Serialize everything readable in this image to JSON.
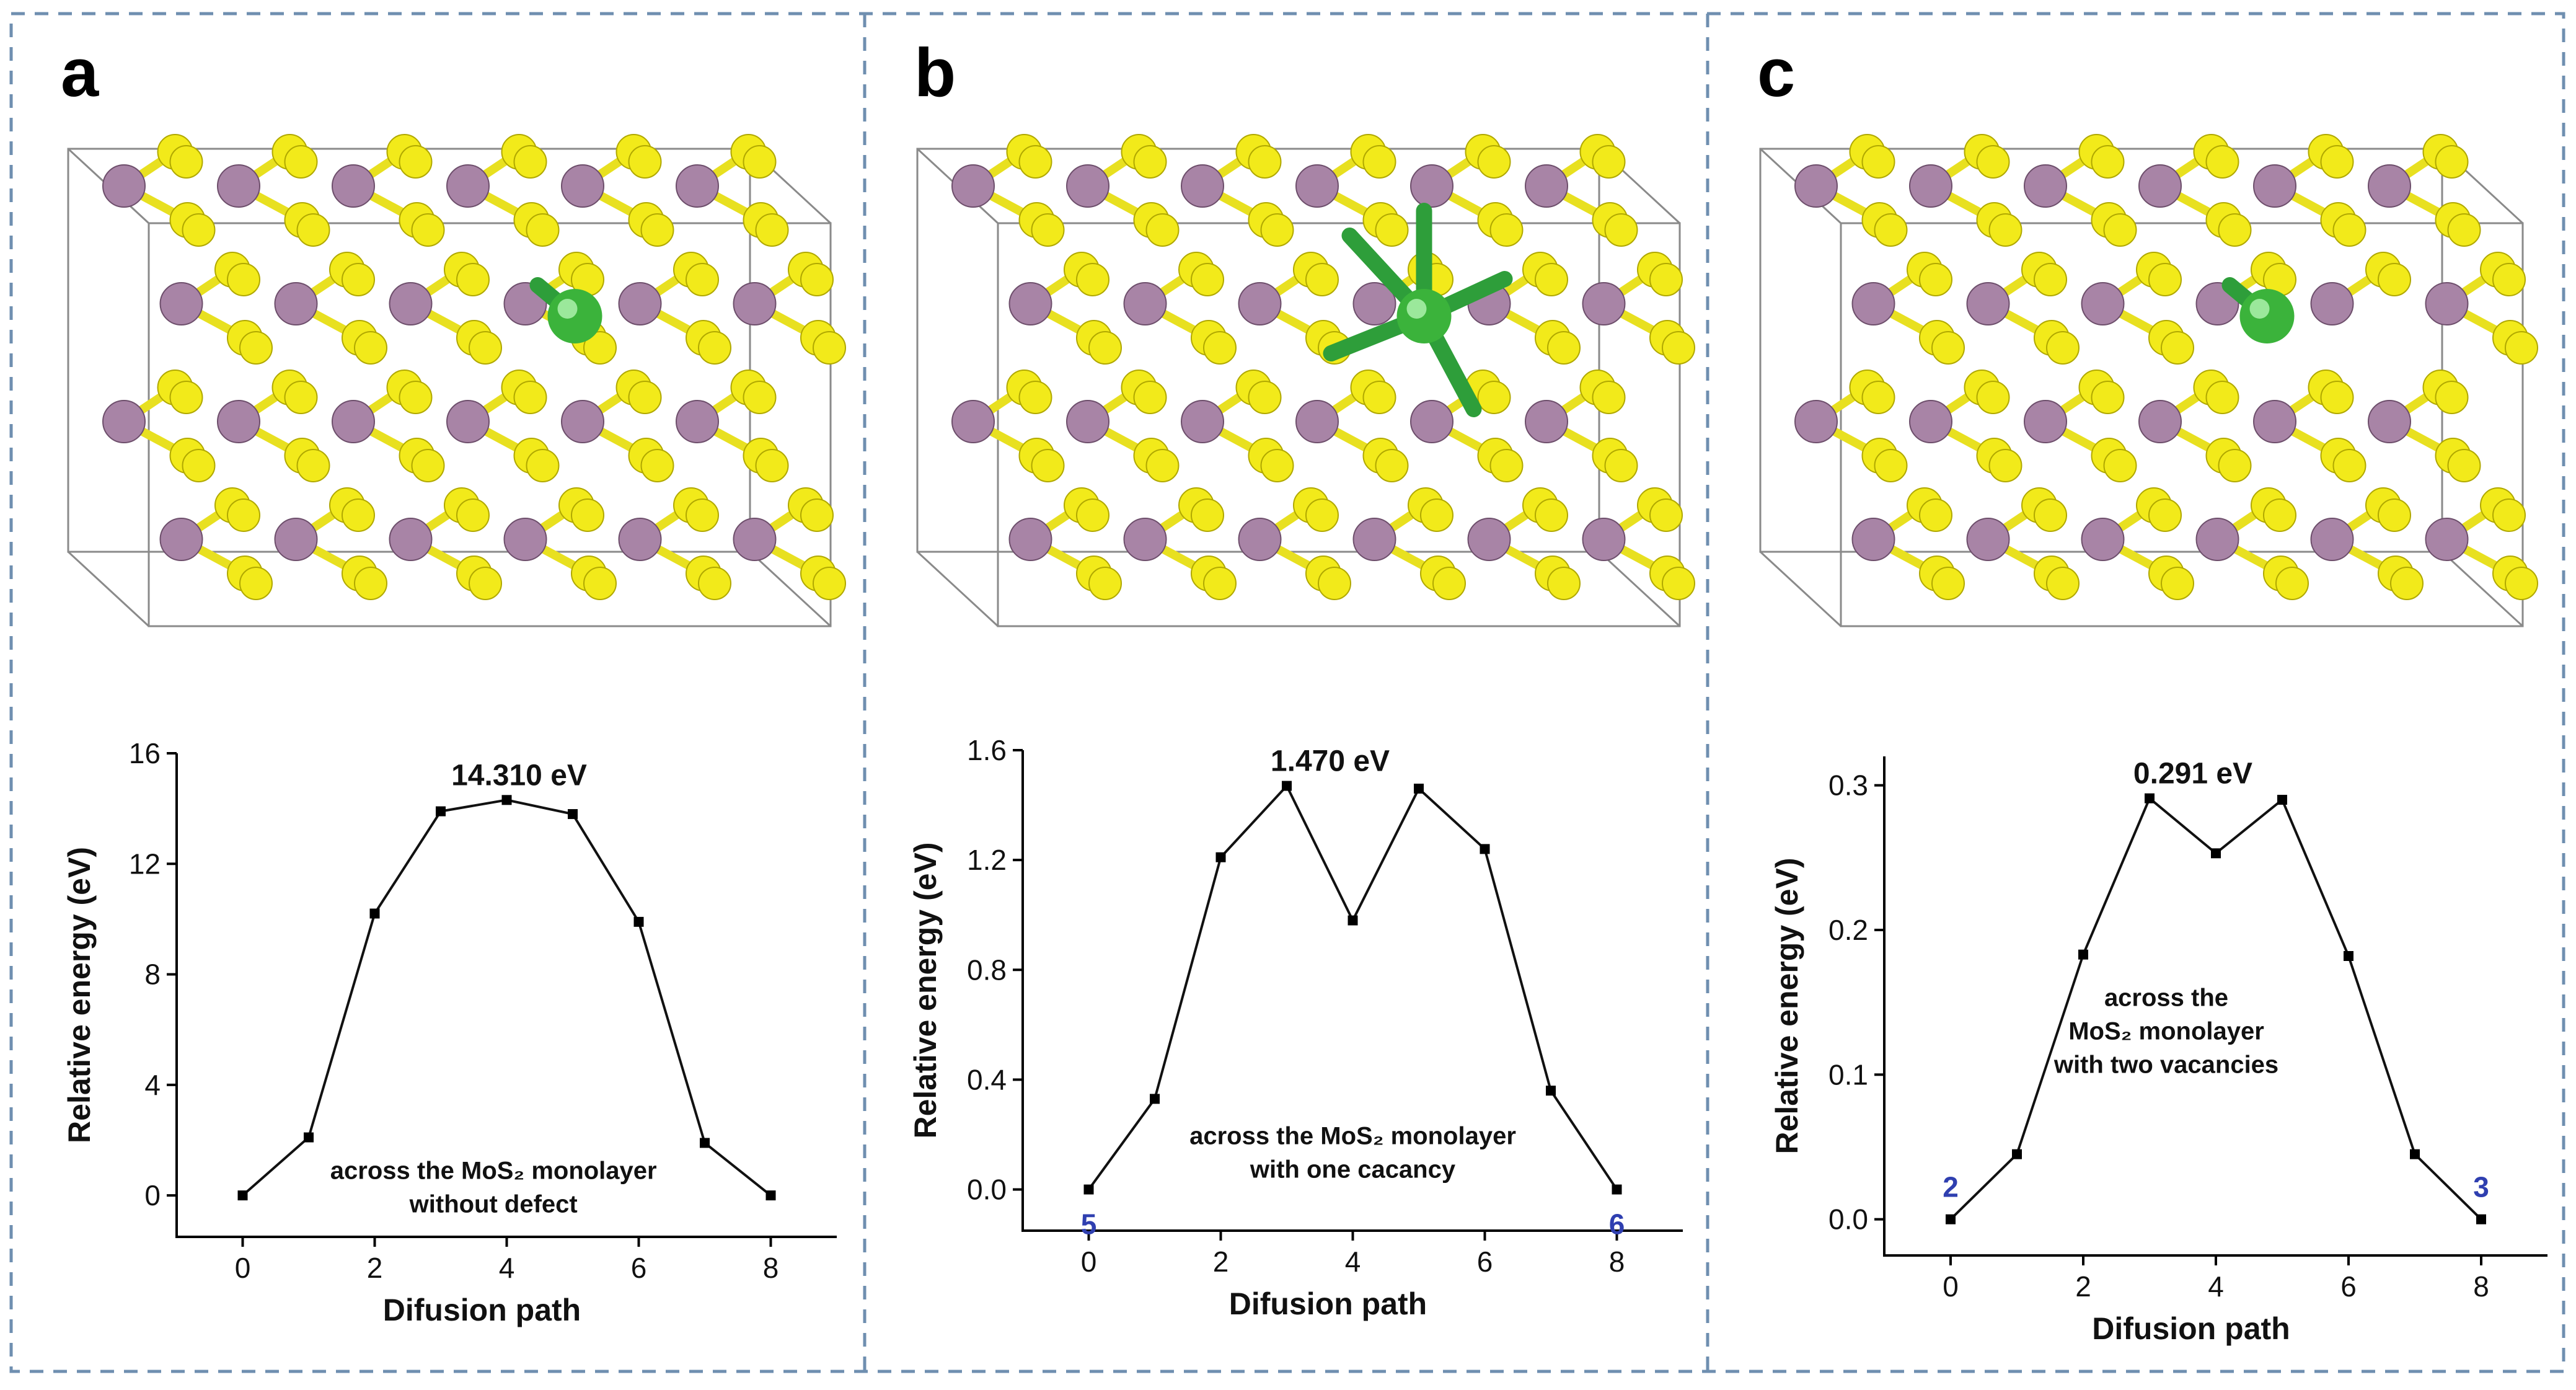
{
  "panels": [
    {
      "letter": "a",
      "peak_label": "14.310 eV",
      "annotation": [
        "across the MoS₂ monolayer",
        "without defect"
      ],
      "start_label": "",
      "end_label": "",
      "defect": "none",
      "colors": {
        "mo": "#a884a6",
        "s": "#f2ea1a",
        "cl": "#3bb33b"
      }
    },
    {
      "letter": "b",
      "peak_label": "1.470 eV",
      "annotation": [
        "across the MoS₂ monolayer",
        "with one cacancy"
      ],
      "start_label": "5",
      "end_label": "6",
      "defect": "one-vacancy",
      "colors": {
        "mo": "#a884a6",
        "s": "#f2ea1a",
        "cl": "#3bb33b"
      }
    },
    {
      "letter": "c",
      "peak_label": "0.291 eV",
      "annotation": [
        "across the",
        "MoS₂ monolayer",
        "with two vacancies"
      ],
      "start_label": "2",
      "end_label": "3",
      "defect": "two-vacancies",
      "colors": {
        "mo": "#a884a6",
        "s": "#f2ea1a",
        "cl": "#3bb33b"
      }
    }
  ],
  "chart_data": [
    {
      "type": "line",
      "xlabel": "Difusion path",
      "ylabel": "Relative energy (eV)",
      "x": [
        0,
        1,
        2,
        3,
        4,
        5,
        6,
        7,
        8
      ],
      "y": [
        0,
        2.1,
        10.2,
        13.9,
        14.31,
        13.8,
        9.9,
        1.9,
        0
      ],
      "xlim": [
        -1,
        9
      ],
      "ylim": [
        -1.5,
        16
      ],
      "xticks": [
        0,
        2,
        4,
        6,
        8
      ],
      "yticks": [
        0,
        4,
        8,
        12,
        16
      ],
      "ytick_labels": [
        "0",
        "4",
        "8",
        "12",
        "16"
      ],
      "peak": {
        "x": 4,
        "y": 14.31,
        "label": "14.310 eV"
      }
    },
    {
      "type": "line",
      "xlabel": "Difusion path",
      "ylabel": "Relative energy (eV)",
      "x": [
        0,
        1,
        2,
        3,
        4,
        5,
        6,
        7,
        8
      ],
      "y": [
        0,
        0.33,
        1.21,
        1.47,
        0.98,
        1.46,
        1.24,
        0.36,
        0
      ],
      "xlim": [
        -1,
        9
      ],
      "ylim": [
        -0.15,
        1.6
      ],
      "xticks": [
        0,
        2,
        4,
        6,
        8
      ],
      "yticks": [
        0,
        0.4,
        0.8,
        1.2,
        1.6
      ],
      "ytick_labels": [
        "0.0",
        "0.4",
        "0.8",
        "1.2",
        "1.6"
      ],
      "peak": {
        "x": 3,
        "y": 1.47,
        "label": "1.470 eV"
      }
    },
    {
      "type": "line",
      "xlabel": "Difusion path",
      "ylabel": "Relative energy (eV)",
      "x": [
        0,
        1,
        2,
        3,
        4,
        5,
        6,
        7,
        8
      ],
      "y": [
        0,
        0.045,
        0.183,
        0.291,
        0.253,
        0.29,
        0.182,
        0.045,
        0
      ],
      "xlim": [
        -1,
        9
      ],
      "ylim": [
        -0.025,
        0.32
      ],
      "xticks": [
        0,
        2,
        4,
        6,
        8
      ],
      "yticks": [
        0,
        0.1,
        0.2,
        0.3
      ],
      "ytick_labels": [
        "0.0",
        "0.1",
        "0.2",
        "0.3"
      ],
      "peak": {
        "x": 3,
        "y": 0.291,
        "label": "0.291 eV"
      }
    }
  ]
}
